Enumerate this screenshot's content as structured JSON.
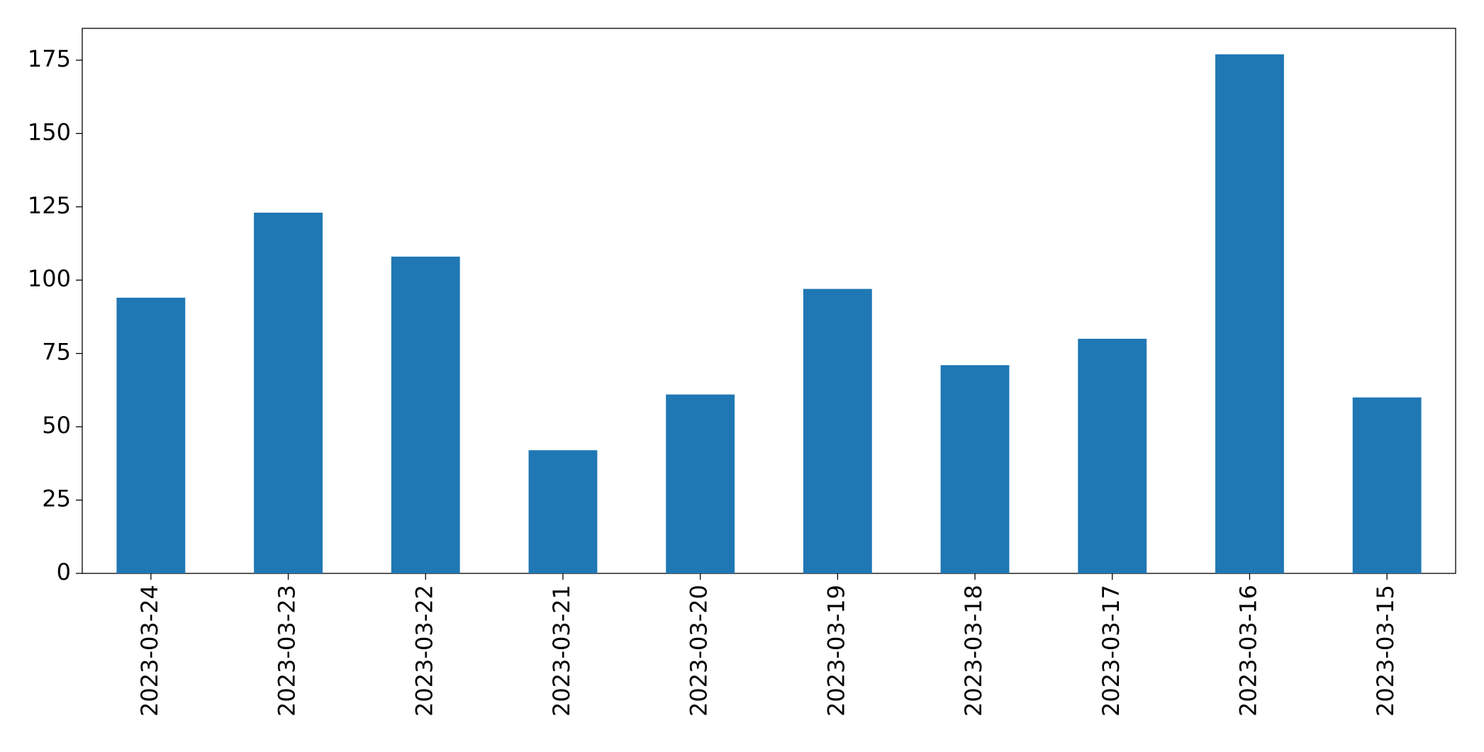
{
  "chart_data": {
    "type": "bar",
    "categories": [
      "2023-03-24",
      "2023-03-23",
      "2023-03-22",
      "2023-03-21",
      "2023-03-20",
      "2023-03-19",
      "2023-03-18",
      "2023-03-17",
      "2023-03-16",
      "2023-03-15"
    ],
    "values": [
      94,
      123,
      108,
      42,
      61,
      97,
      71,
      80,
      177,
      60
    ],
    "color": "#1f77b4",
    "ylim": [
      0,
      185.85
    ],
    "yticks": [
      0,
      25,
      50,
      75,
      100,
      125,
      150,
      175
    ],
    "grid": false
  }
}
